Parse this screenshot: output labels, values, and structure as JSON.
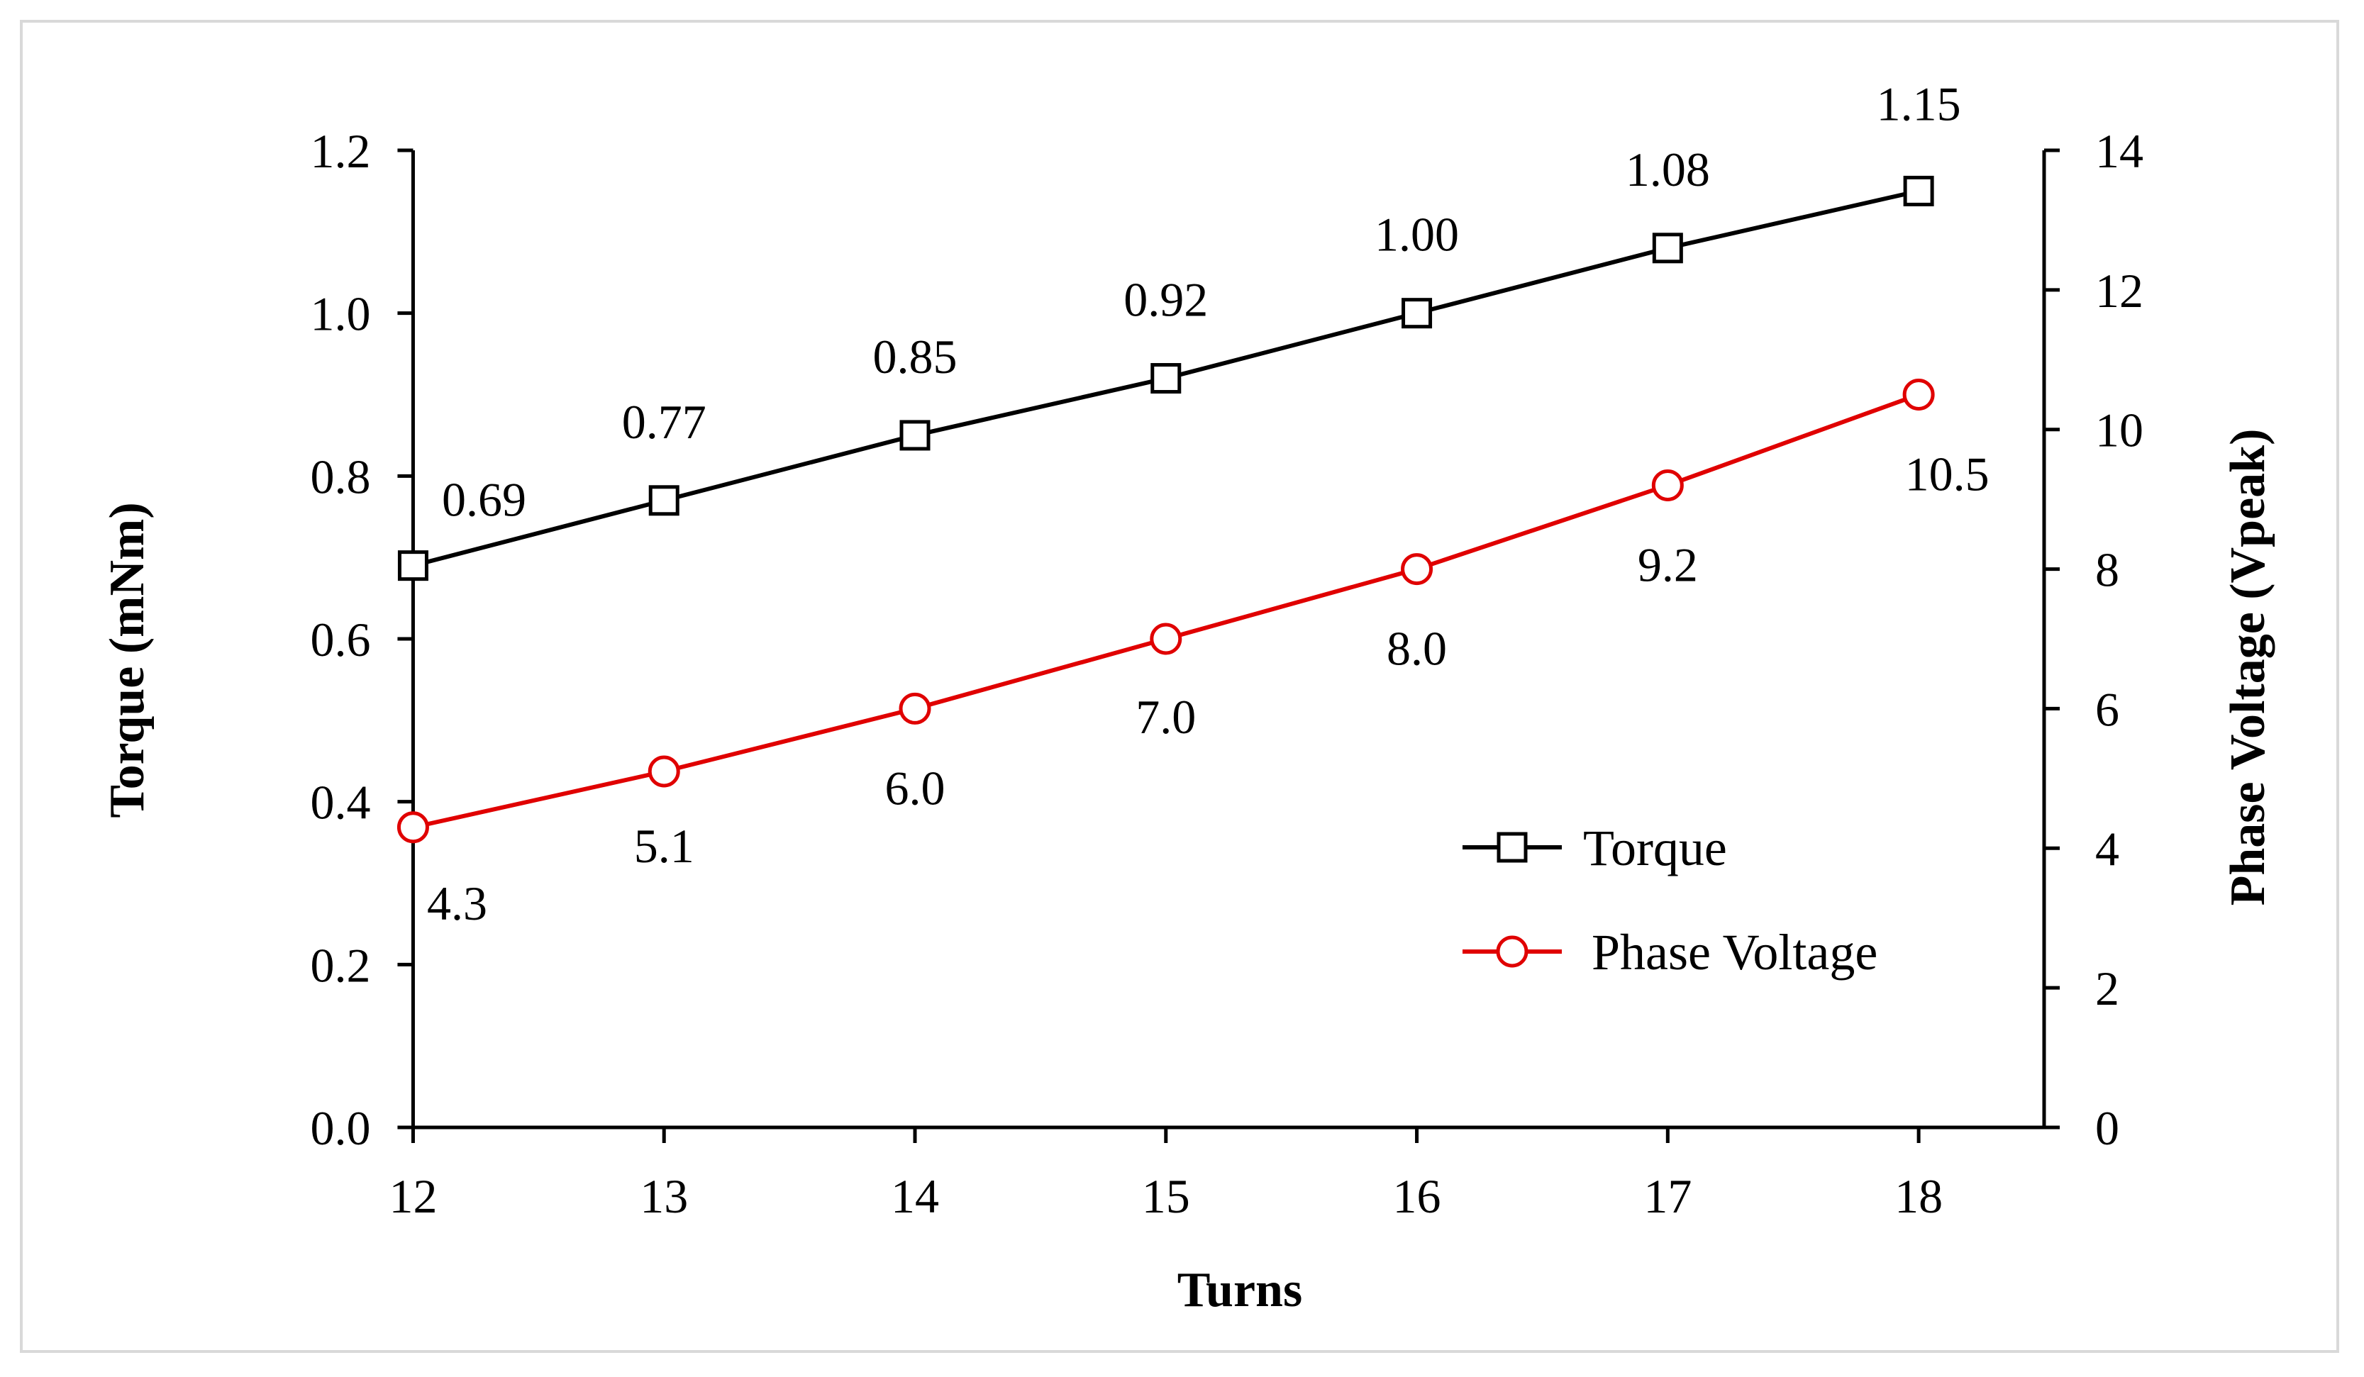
{
  "chart_data": {
    "type": "line",
    "title": "",
    "xlabel": "Turns",
    "ylabel": "Torque (mNm)",
    "y2label": "Phase Voltage (Vpeak)",
    "x": [
      12,
      13,
      14,
      15,
      16,
      17,
      18
    ],
    "xlim": [
      11.75,
      18.5
    ],
    "ylim": [
      0,
      1.2
    ],
    "y2lim": [
      0,
      14
    ],
    "x_ticks": [
      "12",
      "13",
      "14",
      "15",
      "16",
      "17",
      "18"
    ],
    "y_ticks": [
      "0.0",
      "0.2",
      "0.4",
      "0.6",
      "0.8",
      "1.0",
      "1.2"
    ],
    "y2_ticks": [
      "0",
      "2",
      "4",
      "6",
      "8",
      "10",
      "12",
      "14"
    ],
    "grid": false,
    "legend_position": "bottom-right",
    "series": [
      {
        "name": "Torque",
        "axis": "left",
        "color": "#000000",
        "marker": "square",
        "values": [
          0.69,
          0.77,
          0.85,
          0.92,
          1.0,
          1.08,
          1.15
        ],
        "labels": [
          "0.69",
          "0.77",
          "0.85",
          "0.92",
          "1.00",
          "1.08",
          "1.15"
        ]
      },
      {
        "name": "Phase Voltage",
        "axis": "right",
        "color": "#e00000",
        "marker": "circle",
        "values": [
          4.3,
          5.1,
          6.0,
          7.0,
          8.0,
          9.2,
          10.5
        ],
        "labels": [
          "4.3",
          "5.1",
          "6.0",
          "7.0",
          "8.0",
          "9.2",
          "10.5"
        ]
      }
    ]
  }
}
